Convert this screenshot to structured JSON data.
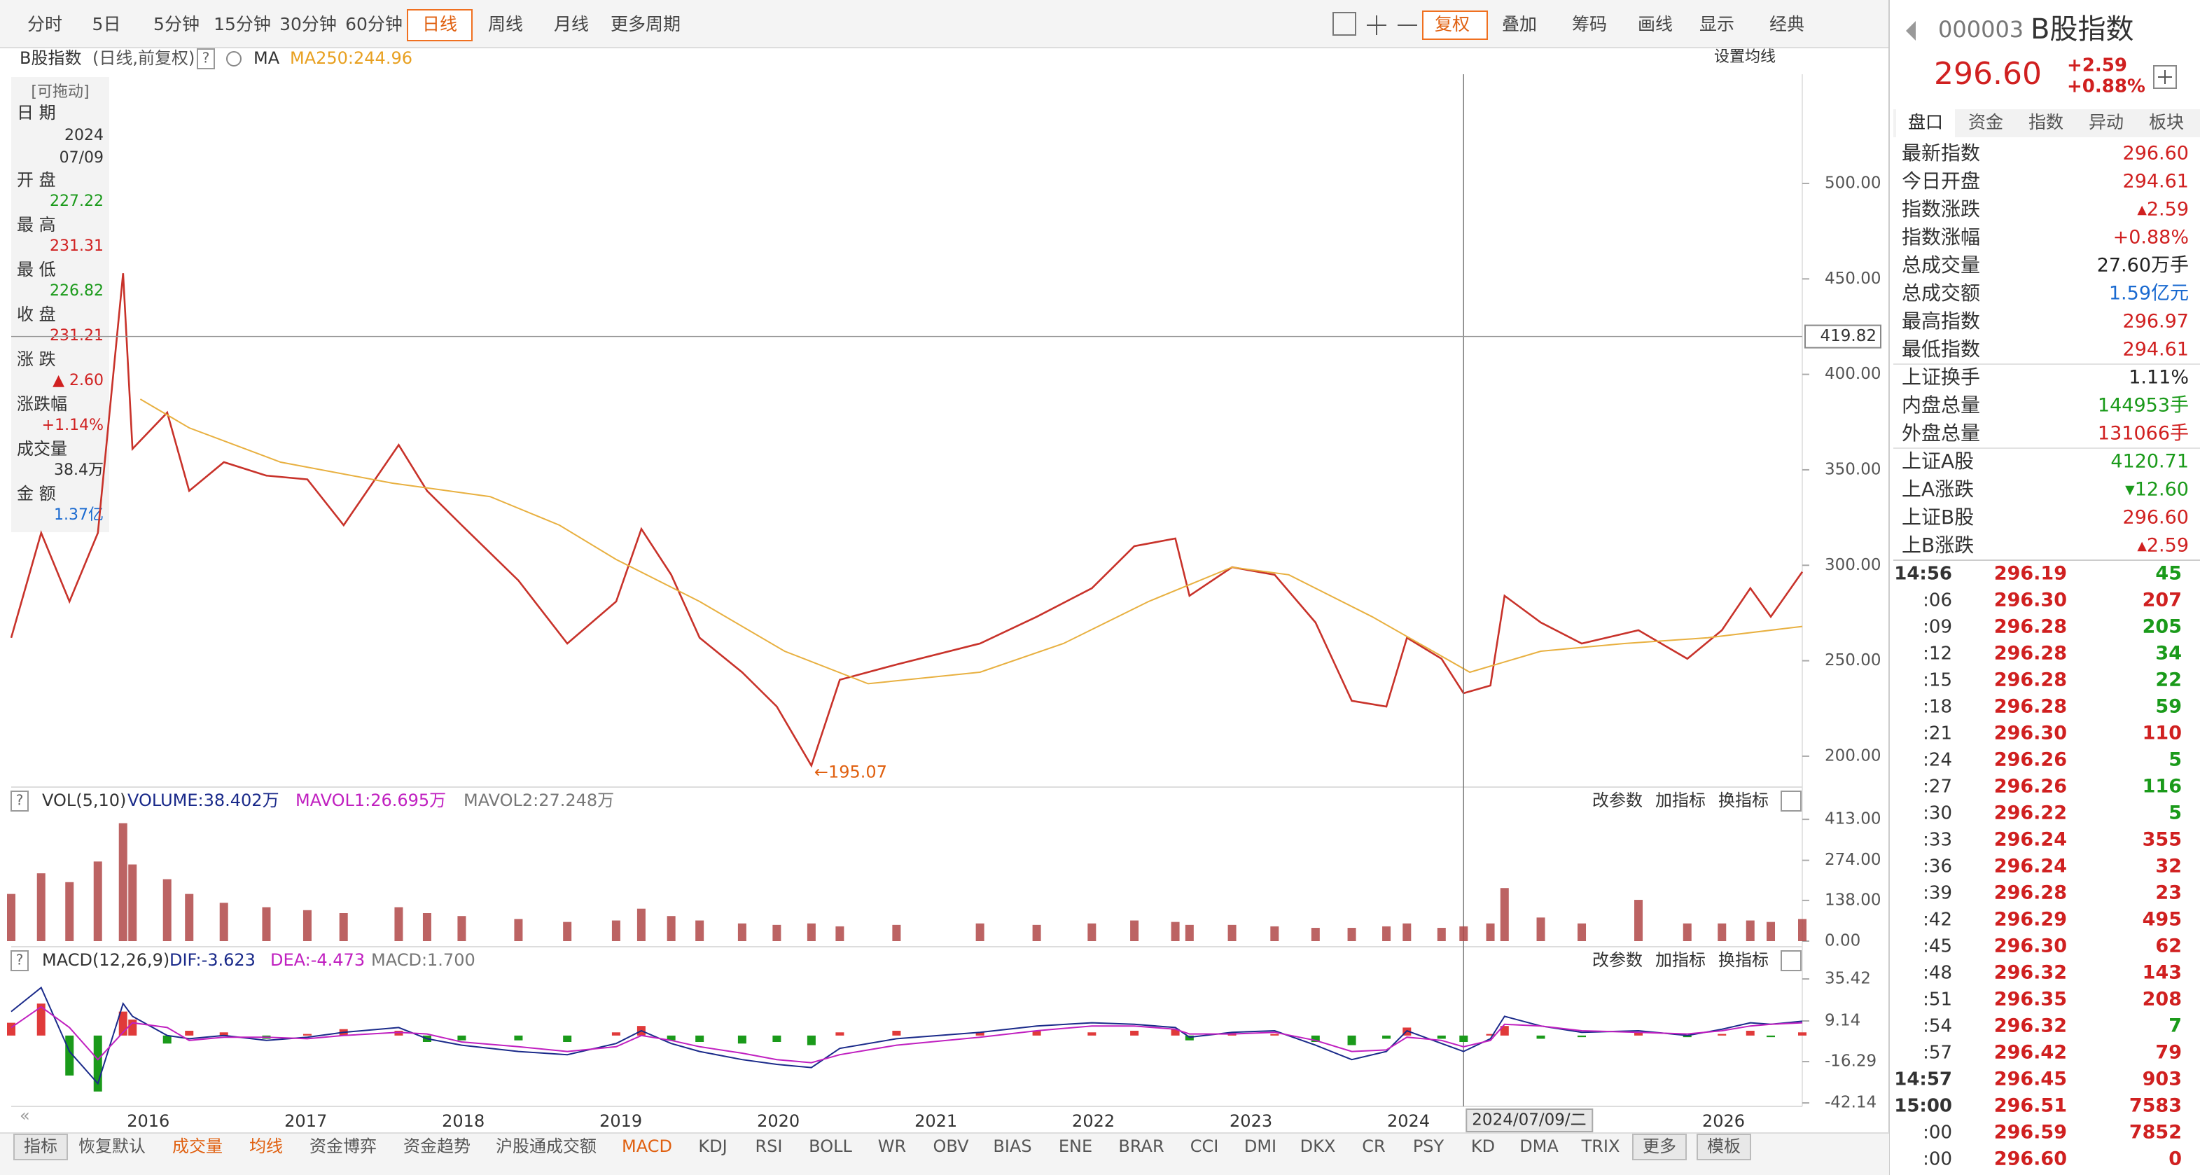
{
  "toolbar": {
    "periods": [
      "分时",
      "5日",
      "5分钟",
      "15分钟",
      "30分钟",
      "60分钟",
      "日线",
      "周线",
      "月线",
      "更多周期"
    ],
    "selected_period": 6,
    "tools": [
      "复权",
      "叠加",
      "筹码",
      "画线",
      "显示",
      "经典"
    ],
    "selected_tool": 0
  },
  "help_icon": "?",
  "header": {
    "name": "B股指数",
    "mode": "(日线,前复权)",
    "ma": "MA",
    "ma_value": "MA250:244.96",
    "settings": "设置均线"
  },
  "info_box": {
    "title": "[可拖动]",
    "date_label": "日 期",
    "date_year": "2024",
    "date_day": "07/09",
    "rows": [
      {
        "label": "开 盘",
        "value": "227.22",
        "color": "#1a9a1a"
      },
      {
        "label": "最 高",
        "value": "231.31",
        "color": "#d02020"
      },
      {
        "label": "最 低",
        "value": "226.82",
        "color": "#1a9a1a"
      },
      {
        "label": "收 盘",
        "value": "231.21",
        "color": "#d02020"
      },
      {
        "label": "涨 跌",
        "value": "▲ 2.60",
        "color": "#d02020"
      },
      {
        "label": "涨跌幅",
        "value": "+1.14%",
        "color": "#d02020"
      },
      {
        "label": "成交量",
        "value": "38.4万",
        "color": "#333333"
      },
      {
        "label": "金 额",
        "value": "1.37亿",
        "color": "#1a6ad0"
      }
    ]
  },
  "pane_buttons": [
    "改参数",
    "加指标",
    "换指标"
  ],
  "chart_data": [
    {
      "type": "line",
      "x": [
        2015.13,
        2015.32,
        2015.5,
        2015.68,
        2015.84,
        2015.9,
        2016.12,
        2016.26,
        2016.48,
        2016.75,
        2017.01,
        2017.24,
        2017.59,
        2017.77,
        2017.99,
        2018.35,
        2018.66,
        2018.97,
        2019.13,
        2019.32,
        2019.5,
        2019.77,
        2019.99,
        2020.21,
        2020.39,
        2020.75,
        2021.28,
        2021.64,
        2021.99,
        2022.26,
        2022.52,
        2022.61,
        2022.88,
        2023.15,
        2023.41,
        2023.64,
        2023.86,
        2023.99,
        2024.21,
        2024.35,
        2024.52,
        2024.61,
        2024.84,
        2025.1,
        2025.46,
        2025.77,
        2025.99,
        2026.17,
        2026.3,
        2026.5
      ],
      "series": [
        {
          "color": "#c8322a",
          "values": [
            262,
            317,
            281,
            317,
            453,
            361,
            380,
            339,
            354,
            347,
            345,
            321,
            363,
            339,
            321,
            292,
            259,
            281,
            319,
            295,
            262,
            244,
            226,
            195.07,
            240,
            248,
            259,
            273,
            288,
            310,
            314,
            284,
            299,
            295,
            270,
            229,
            226,
            262,
            251,
            233,
            237,
            284,
            270,
            259,
            266,
            251,
            266,
            288,
            273,
            296.6
          ]
        },
        {
          "color": "#e8b040",
          "x": [
            2015.95,
            2016.26,
            2016.84,
            2017.55,
            2018.17,
            2018.61,
            2018.97,
            2019.5,
            2020.04,
            2020.57,
            2021.28,
            2021.81,
            2022.35,
            2022.88,
            2023.24,
            2023.77,
            2024.39,
            2024.84,
            2025.37,
            2025.9,
            2026.5
          ],
          "values": [
            387,
            372,
            354,
            343,
            336,
            321,
            303,
            281,
            255,
            238,
            244,
            259,
            281,
            299,
            295,
            273,
            244,
            255,
            259,
            262,
            268
          ]
        }
      ],
      "xlim": [
        2015.13,
        2026.5
      ],
      "xticks": [
        2016,
        2017,
        2018,
        2019,
        2020,
        2021,
        2022,
        2023,
        2024,
        2026
      ],
      "ylim": [
        185.3,
        557.2
      ],
      "yticks": [
        {
          "value": 200,
          "label": "200.00"
        },
        {
          "value": 250,
          "label": "250.00"
        },
        {
          "value": 300,
          "label": "300.00"
        },
        {
          "value": 350,
          "label": "350.00"
        },
        {
          "value": 400,
          "label": "400.00"
        },
        {
          "value": 450,
          "label": "450.00"
        },
        {
          "value": 500,
          "label": "500.00"
        }
      ],
      "grid": false,
      "annotation": "←195.07",
      "annotation_color": "#e06010",
      "crosshair": {
        "x": 2024.35,
        "y": 419.82,
        "label": "2024/07/09/二"
      }
    },
    {
      "type": "bar",
      "title": "VOL(5,10)",
      "legend": [
        {
          "text": "VOLUME:38.402万",
          "color": "#1a2a8a"
        },
        {
          "text": "MAVOL1:26.695万",
          "color": "#c020c0"
        },
        {
          "text": "MAVOL2:27.248万",
          "color": "#777777"
        }
      ],
      "color": "#b04848",
      "values": [
        160,
        230,
        200,
        270,
        400,
        260,
        210,
        160,
        130,
        115,
        105,
        95,
        115,
        95,
        85,
        75,
        65,
        70,
        110,
        85,
        70,
        60,
        55,
        60,
        50,
        55,
        60,
        55,
        60,
        70,
        65,
        55,
        55,
        50,
        45,
        45,
        50,
        60,
        45,
        50,
        60,
        180,
        80,
        60,
        140,
        60,
        60,
        70,
        65,
        75
      ],
      "ylim": [
        0,
        437
      ],
      "yticks": [
        {
          "value": 0,
          "label": "0.00"
        },
        {
          "value": 138,
          "label": "138.00"
        },
        {
          "value": 274,
          "label": "274.00"
        },
        {
          "value": 413,
          "label": "413.00"
        }
      ]
    },
    {
      "type": "macd",
      "title": "MACD(12,26,9)",
      "legend": [
        {
          "text": "DIF:-3.623",
          "color": "#1a2a8a"
        },
        {
          "text": "DEA:-4.473",
          "color": "#c020c0"
        },
        {
          "text": "MACD:1.700",
          "color": "#777777"
        }
      ],
      "series": [
        {
          "up_color": "#e03a3a",
          "down_color": "#1a9a1a",
          "values": [
            8,
            20,
            -25,
            -35,
            15,
            10,
            -5,
            3,
            2,
            -2,
            1,
            4,
            3,
            -4,
            -3,
            -3,
            -4,
            2,
            6,
            -3,
            -4,
            -5,
            -4,
            -6,
            2,
            3,
            2,
            3,
            2,
            3,
            4,
            -3,
            2,
            1,
            -4,
            -6,
            -2,
            5,
            -2,
            -4,
            1,
            6,
            -2,
            -1,
            2,
            -1,
            1,
            3,
            -1,
            2
          ]
        },
        {
          "color": "#1a2a8a",
          "values": [
            15,
            30,
            -10,
            -30,
            20,
            12,
            0,
            -2,
            0,
            -3,
            -1,
            2,
            5,
            -2,
            -6,
            -10,
            -12,
            -5,
            3,
            -5,
            -10,
            -15,
            -18,
            -20,
            -8,
            -2,
            2,
            6,
            8,
            7,
            5,
            -1,
            2,
            3,
            -6,
            -15,
            -10,
            3,
            -5,
            -10,
            -2,
            12,
            6,
            2,
            3,
            0,
            4,
            8,
            7,
            9
          ]
        },
        {
          "color": "#c020c0",
          "values": [
            5,
            18,
            5,
            -15,
            2,
            8,
            5,
            -3,
            -1,
            -1,
            -2,
            0,
            2,
            1,
            -4,
            -7,
            -10,
            -7,
            0,
            -3,
            -7,
            -11,
            -15,
            -17,
            -12,
            -6,
            -1,
            3,
            6,
            6,
            4,
            1,
            1,
            2,
            -3,
            -10,
            -9,
            -1,
            -3,
            -7,
            -3,
            7,
            6,
            3,
            2,
            1,
            3,
            6,
            7,
            8
          ]
        }
      ],
      "ylim": [
        -44.3,
        39.8
      ],
      "yticks": [
        -42.14,
        -16.29,
        9.14,
        35.42
      ]
    }
  ],
  "quote": {
    "code": "000003",
    "name": "B股指数",
    "price": "296.60",
    "change": "+2.59",
    "change_pct": "+0.88%",
    "tabs": [
      "盘口",
      "资金",
      "指数",
      "异动",
      "板块"
    ],
    "rows": [
      {
        "label": "最新指数",
        "value": "296.60",
        "color": "#d02020"
      },
      {
        "label": "今日开盘",
        "value": "294.61",
        "color": "#d02020"
      },
      {
        "label": "指数涨跌",
        "value": "▴2.59",
        "color": "#d02020"
      },
      {
        "label": "指数涨幅",
        "value": "+0.88%",
        "color": "#d02020"
      },
      {
        "label": "总成交量",
        "value": "27.60万手",
        "color": "#222222"
      },
      {
        "label": "总成交额",
        "value": "1.59亿元",
        "color": "#1a6ad0"
      },
      {
        "label": "最高指数",
        "value": "296.97",
        "color": "#d02020"
      },
      {
        "label": "最低指数",
        "value": "294.61",
        "color": "#d02020"
      },
      {
        "label": "上证换手",
        "value": "1.11%",
        "color": "#222222"
      },
      {
        "label": "内盘总量",
        "value": "144953手",
        "color": "#1a9a1a"
      },
      {
        "label": "外盘总量",
        "value": "131066手",
        "color": "#d02020"
      },
      {
        "label": "上证A股",
        "value": "4120.71",
        "color": "#1a9a1a"
      },
      {
        "label": "上A涨跌",
        "value": "▾12.60",
        "color": "#1a9a1a"
      },
      {
        "label": "上证B股",
        "value": "296.60",
        "color": "#d02020"
      },
      {
        "label": "上B涨跌",
        "value": "▴2.59",
        "color": "#d02020"
      }
    ],
    "ticks": [
      {
        "time": "14:56",
        "price": "296.19",
        "volume": "45",
        "color": "#1a9a1a"
      },
      {
        "time": ":06",
        "price": "296.30",
        "volume": "207",
        "color": "#d02020"
      },
      {
        "time": ":09",
        "price": "296.28",
        "volume": "205",
        "color": "#1a9a1a"
      },
      {
        "time": ":12",
        "price": "296.28",
        "volume": "34",
        "color": "#1a9a1a"
      },
      {
        "time": ":15",
        "price": "296.28",
        "volume": "22",
        "color": "#1a9a1a"
      },
      {
        "time": ":18",
        "price": "296.28",
        "volume": "59",
        "color": "#1a9a1a"
      },
      {
        "time": ":21",
        "price": "296.30",
        "volume": "110",
        "color": "#d02020"
      },
      {
        "time": ":24",
        "price": "296.26",
        "volume": "5",
        "color": "#1a9a1a"
      },
      {
        "time": ":27",
        "price": "296.26",
        "volume": "116",
        "color": "#1a9a1a"
      },
      {
        "time": ":30",
        "price": "296.22",
        "volume": "5",
        "color": "#1a9a1a"
      },
      {
        "time": ":33",
        "price": "296.24",
        "volume": "355",
        "color": "#d02020"
      },
      {
        "time": ":36",
        "price": "296.24",
        "volume": "32",
        "color": "#d02020"
      },
      {
        "time": ":39",
        "price": "296.28",
        "volume": "23",
        "color": "#d02020"
      },
      {
        "time": ":42",
        "price": "296.29",
        "volume": "495",
        "color": "#d02020"
      },
      {
        "time": ":45",
        "price": "296.30",
        "volume": "62",
        "color": "#d02020"
      },
      {
        "time": ":48",
        "price": "296.32",
        "volume": "143",
        "color": "#d02020"
      },
      {
        "time": ":51",
        "price": "296.35",
        "volume": "208",
        "color": "#d02020"
      },
      {
        "time": ":54",
        "price": "296.32",
        "volume": "7",
        "color": "#1a9a1a"
      },
      {
        "time": ":57",
        "price": "296.42",
        "volume": "79",
        "color": "#d02020"
      },
      {
        "time": "14:57",
        "price": "296.45",
        "volume": "903",
        "color": "#d02020"
      },
      {
        "time": "15:00",
        "price": "296.51",
        "volume": "7583",
        "color": "#d02020"
      },
      {
        "time": ":00",
        "price": "296.59",
        "volume": "7852",
        "color": "#d02020"
      },
      {
        "time": ":00",
        "price": "296.60",
        "volume": "0",
        "color": "#d02020"
      }
    ]
  },
  "bottom_tabs": {
    "items": [
      "指标",
      "恢复默认",
      "成交量",
      "均线",
      "资金博弈",
      "资金趋势",
      "沪股通成交额",
      "MACD",
      "KDJ",
      "RSI",
      "BOLL",
      "WR",
      "OBV",
      "BIAS",
      "ENE",
      "BRAR",
      "CCI",
      "DMI",
      "DKX",
      "CR",
      "PSY",
      "KD",
      "DMA",
      "TRIX",
      "更多",
      "模板"
    ],
    "highlighted": [
      2,
      3,
      7
    ],
    "boxed": [
      0,
      24,
      25
    ]
  }
}
